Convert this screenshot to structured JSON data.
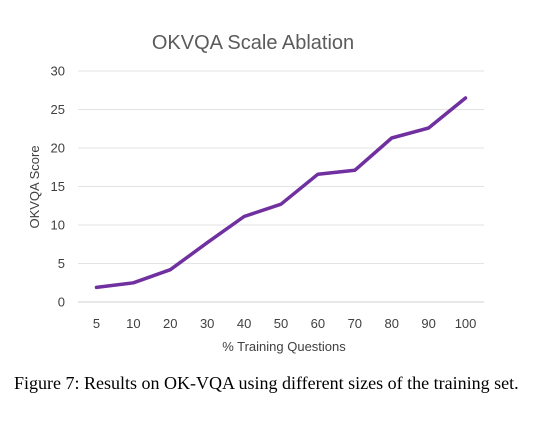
{
  "chart_data": {
    "type": "line",
    "title": "OKVQA Scale Ablation",
    "xlabel": "% Training Questions",
    "ylabel": "OKVQA Score",
    "categories": [
      "5",
      "10",
      "20",
      "30",
      "40",
      "50",
      "60",
      "70",
      "80",
      "90",
      "100"
    ],
    "series": [
      {
        "values": [
          1.9,
          2.5,
          4.2,
          7.7,
          11.1,
          12.7,
          16.6,
          17.1,
          21.3,
          22.6,
          26.5
        ],
        "color": "#7030a0"
      }
    ],
    "ylim": [
      0,
      30
    ],
    "yticks": [
      0,
      5,
      10,
      15,
      20,
      25,
      30
    ],
    "grid": true,
    "legend": "none"
  },
  "caption": {
    "text": "Figure 7: Results on OK-VQA using different sizes of the training set."
  }
}
